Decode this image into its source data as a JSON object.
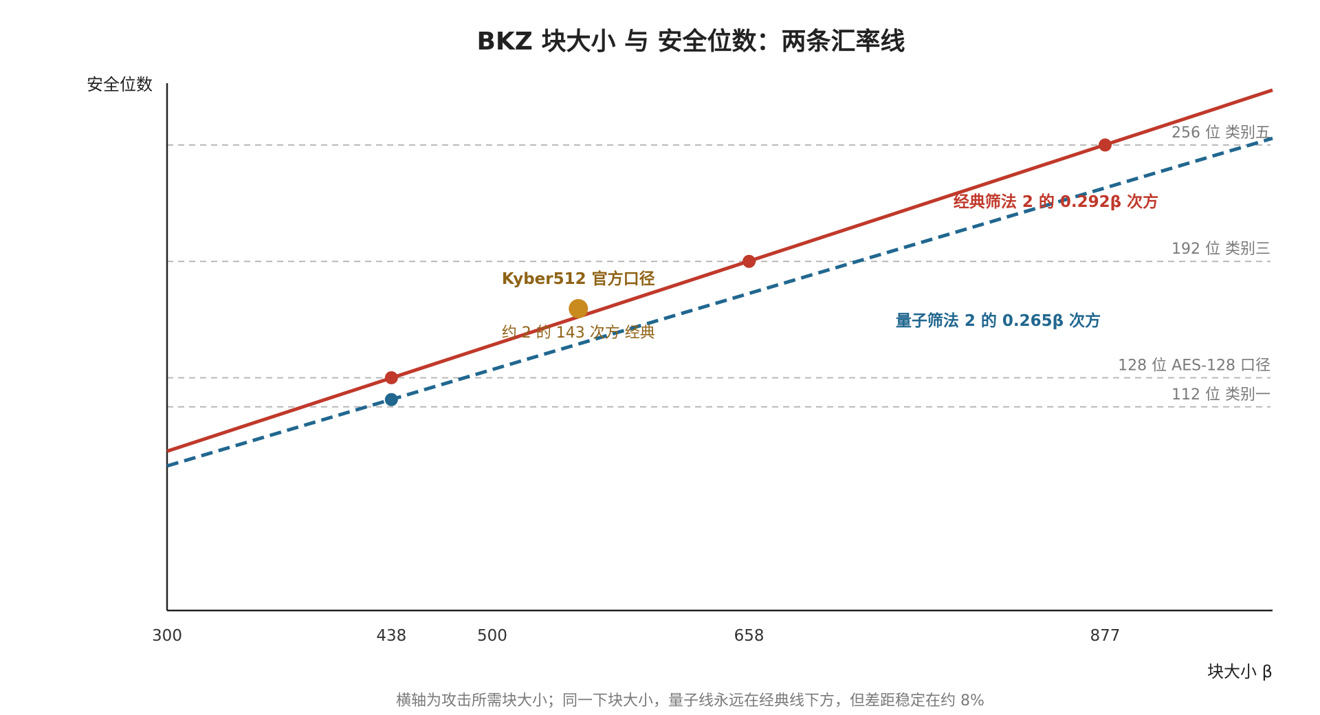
{
  "chart_data": {
    "type": "line",
    "title": "BKZ 块大小 与 安全位数：两条汇率线",
    "xlabel": "块大小 β",
    "ylabel": "安全位数",
    "caption": "横轴为攻击所需块大小；同一下块大小，量子线永远在经典线下方，但差距稳定在约 8%",
    "xlim": [
      300,
      980
    ],
    "ylim": [
      0,
      290
    ],
    "x_ticks": [
      300,
      438,
      500,
      658,
      877
    ],
    "grid": "horizontal reference lines only",
    "reference_lines": [
      {
        "y": 256,
        "label": "256 位 类别五"
      },
      {
        "y": 192,
        "label": "192 位 类别三"
      },
      {
        "y": 128,
        "label": "128 位 AES-128 口径"
      },
      {
        "y": 112,
        "label": "112 位 类别一"
      }
    ],
    "series": [
      {
        "name": "经典筛法 2 的 0.292β 次方",
        "color": "#c0392b",
        "style": "solid",
        "x": [
          300,
          980
        ],
        "y": [
          87.6,
          286.2
        ],
        "markers": [
          {
            "x": 438,
            "y": 128
          },
          {
            "x": 658,
            "y": 192
          },
          {
            "x": 877,
            "y": 256
          }
        ]
      },
      {
        "name": "量子筛法 2 的 0.265β 次方",
        "color": "#21678f",
        "style": "dashed",
        "x": [
          300,
          980
        ],
        "y": [
          79.5,
          259.7
        ],
        "markers": [
          {
            "x": 438,
            "y": 116
          }
        ]
      }
    ],
    "highlight": {
      "label": "Kyber512 官方口径",
      "sublabel": "约 2 的 143 次方 经典",
      "x": 553,
      "y": 166,
      "color": "#c98a1e"
    }
  }
}
